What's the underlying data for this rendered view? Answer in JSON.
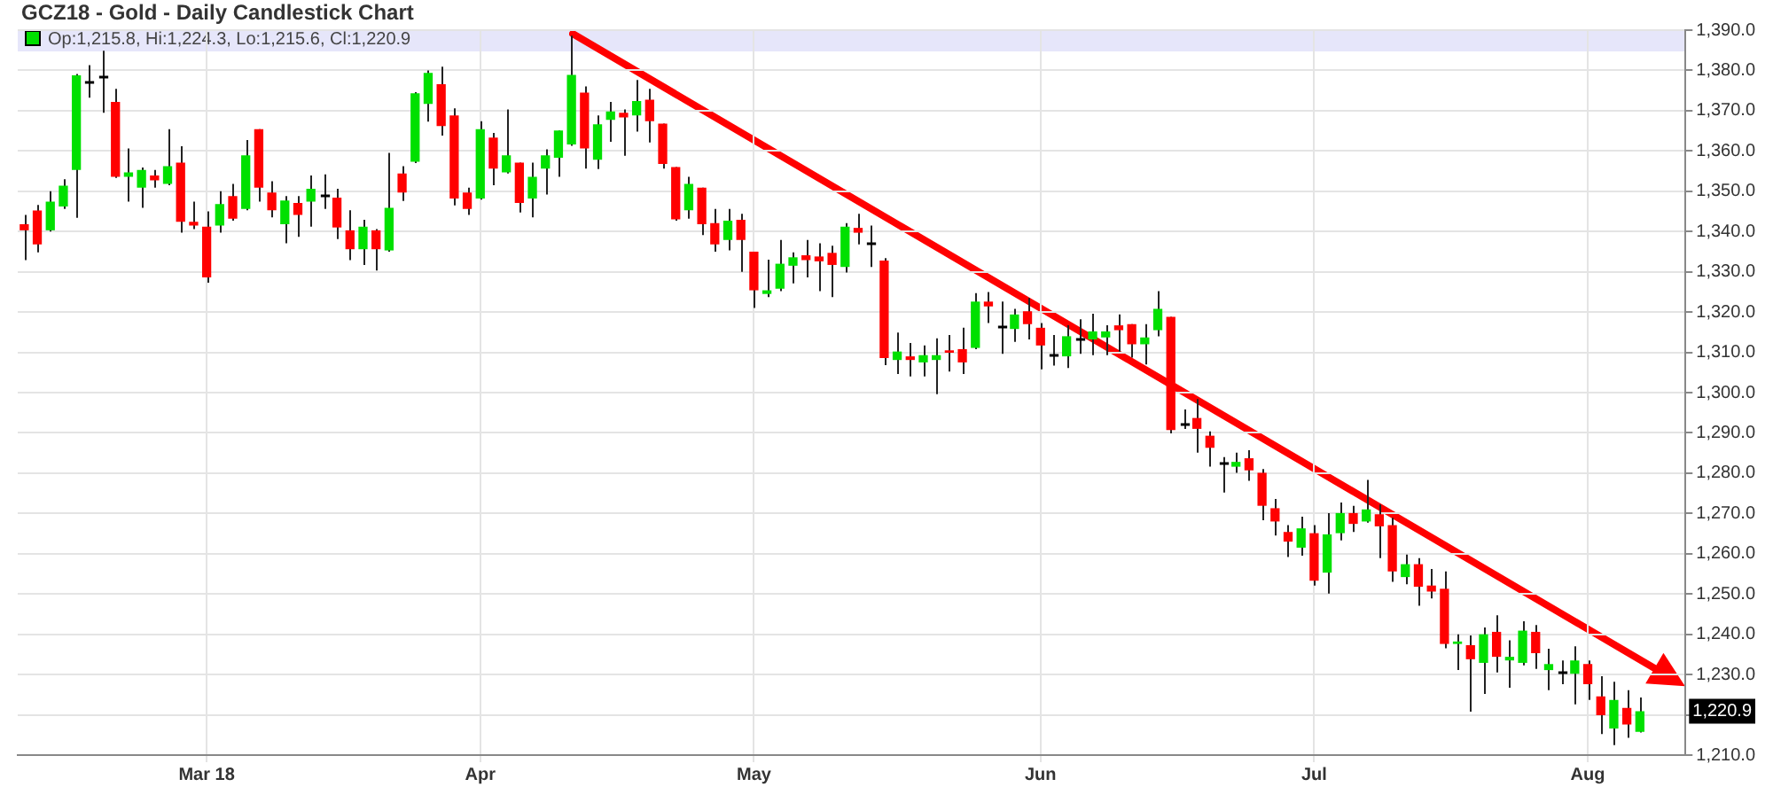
{
  "chart_data": {
    "type": "candlestick",
    "title": "GCZ18 - Gold - Daily Candlestick Chart",
    "categories": [
      null,
      null,
      null,
      null,
      null,
      null,
      null,
      null,
      null,
      null,
      null,
      null,
      null,
      null,
      "Mar 18",
      null,
      null,
      null,
      null,
      null,
      null,
      null,
      null,
      null,
      null,
      null,
      null,
      null,
      null,
      null,
      null,
      null,
      null,
      null,
      null,
      "Apr",
      null,
      null,
      null,
      null,
      null,
      null,
      null,
      null,
      null,
      null,
      null,
      null,
      null,
      null,
      null,
      null,
      null,
      null,
      null,
      null,
      "May",
      null,
      null,
      null,
      null,
      null,
      null,
      null,
      null,
      null,
      null,
      null,
      null,
      null,
      null,
      null,
      null,
      null,
      null,
      null,
      null,
      null,
      "Jun",
      null,
      null,
      null,
      null,
      null,
      null,
      null,
      null,
      null,
      null,
      null,
      null,
      null,
      null,
      null,
      null,
      null,
      null,
      null,
      null,
      "Jul",
      null,
      null,
      null,
      null,
      null,
      null,
      null,
      null,
      null,
      null,
      null,
      null,
      null,
      null,
      null,
      null,
      null,
      null,
      null,
      null,
      "Aug",
      null,
      null,
      null,
      null,
      null,
      null,
      null
    ],
    "ohlc": [
      [
        1341.8,
        1344.1,
        1332.9,
        1340.3
      ],
      [
        1345.2,
        1346.6,
        1334.8,
        1336.8
      ],
      [
        1340.3,
        1350.0,
        1340.0,
        1347.4
      ],
      [
        1346.2,
        1353.0,
        1345.6,
        1351.4
      ],
      [
        1355.3,
        1379.1,
        1343.4,
        1378.8
      ],
      [
        1377.2,
        1381.3,
        1373.2,
        1377.2
      ],
      [
        1378.5,
        1384.9,
        1369.5,
        1378.5
      ],
      [
        1372.2,
        1375.4,
        1353.3,
        1353.6
      ],
      [
        1353.6,
        1360.6,
        1347.4,
        1354.7
      ],
      [
        1350.9,
        1355.9,
        1345.9,
        1355.3
      ],
      [
        1353.9,
        1355.3,
        1350.9,
        1352.7
      ],
      [
        1351.8,
        1365.4,
        1351.5,
        1356.2
      ],
      [
        1357.1,
        1361.2,
        1339.7,
        1342.4
      ],
      [
        1342.4,
        1347.4,
        1340.6,
        1341.5
      ],
      [
        1341.2,
        1345.0,
        1327.3,
        1328.6
      ],
      [
        1341.5,
        1350.0,
        1339.7,
        1346.8
      ],
      [
        1348.8,
        1351.8,
        1342.7,
        1343.2
      ],
      [
        1345.6,
        1362.7,
        1345.3,
        1358.9
      ],
      [
        1365.4,
        1365.4,
        1347.4,
        1350.9
      ],
      [
        1349.7,
        1352.5,
        1343.5,
        1345.3
      ],
      [
        1341.8,
        1348.8,
        1337.1,
        1347.7
      ],
      [
        1347.1,
        1348.8,
        1338.7,
        1344.1
      ],
      [
        1347.4,
        1353.9,
        1341.2,
        1350.6
      ],
      [
        1349.1,
        1354.2,
        1345.6,
        1349.1
      ],
      [
        1348.4,
        1350.6,
        1338.1,
        1341.0
      ],
      [
        1340.3,
        1345.3,
        1332.9,
        1335.6
      ],
      [
        1335.6,
        1342.9,
        1331.7,
        1341.2
      ],
      [
        1340.3,
        1340.6,
        1330.3,
        1335.6
      ],
      [
        1335.3,
        1359.5,
        1335.0,
        1345.9
      ],
      [
        1354.4,
        1356.2,
        1347.6,
        1349.7
      ],
      [
        1357.3,
        1374.6,
        1357.0,
        1374.3
      ],
      [
        1371.7,
        1380.0,
        1367.3,
        1379.4
      ],
      [
        1376.6,
        1380.9,
        1363.8,
        1366.2
      ],
      [
        1368.8,
        1370.6,
        1346.5,
        1348.2
      ],
      [
        1349.7,
        1350.9,
        1344.1,
        1345.6
      ],
      [
        1348.2,
        1367.4,
        1347.9,
        1365.4
      ],
      [
        1363.3,
        1364.5,
        1351.5,
        1355.6
      ],
      [
        1354.7,
        1370.3,
        1354.4,
        1358.9
      ],
      [
        1357.1,
        1357.1,
        1344.7,
        1347.1
      ],
      [
        1348.2,
        1357.1,
        1343.5,
        1353.6
      ],
      [
        1355.6,
        1360.4,
        1349.2,
        1358.9
      ],
      [
        1358.3,
        1365.1,
        1353.6,
        1365.1
      ],
      [
        1361.6,
        1388.6,
        1361.3,
        1378.9
      ],
      [
        1374.5,
        1376.0,
        1355.6,
        1360.6
      ],
      [
        1357.8,
        1368.8,
        1355.5,
        1366.6
      ],
      [
        1367.7,
        1372.2,
        1362.3,
        1369.8
      ],
      [
        1369.5,
        1370.3,
        1358.8,
        1368.3
      ],
      [
        1368.8,
        1377.6,
        1364.8,
        1372.4
      ],
      [
        1372.7,
        1375.4,
        1362.1,
        1367.4
      ],
      [
        1366.8,
        1366.8,
        1355.6,
        1356.8
      ],
      [
        1356.0,
        1356.0,
        1342.7,
        1343.0
      ],
      [
        1345.3,
        1353.6,
        1343.2,
        1351.8
      ],
      [
        1350.9,
        1350.9,
        1339.1,
        1341.8
      ],
      [
        1342.1,
        1345.6,
        1335.0,
        1336.8
      ],
      [
        1337.9,
        1345.6,
        1335.3,
        1342.7
      ],
      [
        1342.9,
        1344.4,
        1330.0,
        1337.9
      ],
      [
        1335.0,
        1335.0,
        1321.0,
        1325.4
      ],
      [
        1324.5,
        1333.0,
        1323.7,
        1325.4
      ],
      [
        1325.8,
        1337.9,
        1325.2,
        1332.0
      ],
      [
        1331.5,
        1334.8,
        1327.1,
        1333.6
      ],
      [
        1334.1,
        1337.9,
        1328.6,
        1332.9
      ],
      [
        1333.8,
        1337.1,
        1325.2,
        1332.6
      ],
      [
        1334.7,
        1336.5,
        1323.7,
        1331.7
      ],
      [
        1331.2,
        1342.1,
        1329.8,
        1341.2
      ],
      [
        1340.9,
        1344.4,
        1336.8,
        1339.7
      ],
      [
        1337.3,
        1341.5,
        1331.2,
        1337.3
      ],
      [
        1332.8,
        1333.4,
        1306.8,
        1308.6
      ],
      [
        1308.1,
        1314.9,
        1304.6,
        1310.2
      ],
      [
        1309.0,
        1312.3,
        1304.0,
        1308.1
      ],
      [
        1307.5,
        1311.7,
        1304.0,
        1309.3
      ],
      [
        1308.1,
        1313.5,
        1299.6,
        1309.3
      ],
      [
        1310.5,
        1314.3,
        1305.2,
        1309.9
      ],
      [
        1310.8,
        1316.1,
        1304.6,
        1307.5
      ],
      [
        1311.1,
        1324.7,
        1310.8,
        1322.6
      ],
      [
        1322.6,
        1325.0,
        1317.3,
        1321.4
      ],
      [
        1316.4,
        1322.6,
        1309.6,
        1316.4
      ],
      [
        1315.8,
        1320.8,
        1312.6,
        1319.4
      ],
      [
        1320.2,
        1323.5,
        1313.2,
        1317.0
      ],
      [
        1316.1,
        1317.3,
        1305.8,
        1311.7
      ],
      [
        1309.3,
        1314.3,
        1306.7,
        1309.3
      ],
      [
        1309.0,
        1316.7,
        1306.1,
        1314.0
      ],
      [
        1313.5,
        1318.2,
        1309.6,
        1313.5
      ],
      [
        1313.2,
        1319.6,
        1309.3,
        1315.2
      ],
      [
        1313.7,
        1316.7,
        1309.3,
        1315.2
      ],
      [
        1316.7,
        1319.4,
        1310.2,
        1315.5
      ],
      [
        1317.0,
        1317.0,
        1308.7,
        1312.0
      ],
      [
        1312.0,
        1317.0,
        1307.0,
        1313.7
      ],
      [
        1315.5,
        1325.2,
        1314.0,
        1320.8
      ],
      [
        1318.8,
        1318.8,
        1289.9,
        1290.7
      ],
      [
        1292.5,
        1295.8,
        1291.0,
        1292.5
      ],
      [
        1293.7,
        1298.4,
        1285.1,
        1291.0
      ],
      [
        1289.3,
        1290.4,
        1281.6,
        1286.3
      ],
      [
        1282.5,
        1284.0,
        1275.2,
        1282.5
      ],
      [
        1281.6,
        1285.1,
        1280.1,
        1282.8
      ],
      [
        1283.7,
        1285.7,
        1278.1,
        1280.7
      ],
      [
        1280.1,
        1281.0,
        1268.3,
        1271.9
      ],
      [
        1271.3,
        1273.6,
        1264.5,
        1268.0
      ],
      [
        1265.4,
        1267.1,
        1259.2,
        1263.0
      ],
      [
        1261.5,
        1269.2,
        1259.5,
        1266.3
      ],
      [
        1265.1,
        1267.1,
        1252.1,
        1253.3
      ],
      [
        1255.3,
        1270.1,
        1250.1,
        1264.8
      ],
      [
        1265.1,
        1272.7,
        1263.3,
        1270.1
      ],
      [
        1270.1,
        1271.9,
        1265.4,
        1267.4
      ],
      [
        1268.0,
        1278.3,
        1267.7,
        1271.0
      ],
      [
        1269.8,
        1272.2,
        1258.9,
        1266.8
      ],
      [
        1267.1,
        1268.9,
        1253.0,
        1255.6
      ],
      [
        1254.2,
        1259.8,
        1252.4,
        1257.4
      ],
      [
        1257.4,
        1258.9,
        1247.1,
        1251.8
      ],
      [
        1252.1,
        1256.2,
        1248.9,
        1250.6
      ],
      [
        1251.3,
        1255.6,
        1236.5,
        1237.6
      ],
      [
        1237.6,
        1240.0,
        1231.1,
        1238.2
      ],
      [
        1237.3,
        1239.7,
        1220.8,
        1233.8
      ],
      [
        1232.9,
        1241.7,
        1225.2,
        1240.0
      ],
      [
        1240.6,
        1244.7,
        1230.5,
        1234.4
      ],
      [
        1233.5,
        1238.5,
        1226.7,
        1234.4
      ],
      [
        1232.9,
        1243.2,
        1232.3,
        1240.9
      ],
      [
        1240.6,
        1242.3,
        1231.4,
        1235.3
      ],
      [
        1231.1,
        1236.4,
        1226.1,
        1232.6
      ],
      [
        1230.8,
        1233.5,
        1227.6,
        1230.8
      ],
      [
        1230.2,
        1237.0,
        1222.6,
        1233.5
      ],
      [
        1232.6,
        1233.5,
        1223.7,
        1227.6
      ],
      [
        1224.6,
        1229.6,
        1215.2,
        1219.9
      ],
      [
        1216.6,
        1228.2,
        1212.5,
        1223.7
      ],
      [
        1221.7,
        1226.1,
        1214.3,
        1217.6
      ],
      [
        1215.8,
        1224.3,
        1215.6,
        1220.9
      ],
      null,
      null,
      null
    ],
    "colors": [
      "#ff0000",
      "#ff0000",
      "#00e000",
      "#00e000",
      "#00e000",
      "#000000",
      "#000000",
      "#ff0000",
      "#00e000",
      "#00e000",
      "#ff0000",
      "#00e000",
      "#ff0000",
      "#ff0000",
      "#ff0000",
      "#00e000",
      "#ff0000",
      "#00e000",
      "#ff0000",
      "#ff0000",
      "#00e000",
      "#ff0000",
      "#00e000",
      "#000000",
      "#ff0000",
      "#ff0000",
      "#00e000",
      "#ff0000",
      "#00e000",
      "#ff0000",
      "#00e000",
      "#00e000",
      "#ff0000",
      "#ff0000",
      "#ff0000",
      "#00e000",
      "#ff0000",
      "#00e000",
      "#ff0000",
      "#00e000",
      "#00e000",
      "#00e000",
      "#00e000",
      "#ff0000",
      "#00e000",
      "#00e000",
      "#ff0000",
      "#00e000",
      "#ff0000",
      "#ff0000",
      "#ff0000",
      "#00e000",
      "#ff0000",
      "#ff0000",
      "#00e000",
      "#ff0000",
      "#ff0000",
      "#00e000",
      "#00e000",
      "#00e000",
      "#ff0000",
      "#ff0000",
      "#ff0000",
      "#00e000",
      "#ff0000",
      "#000000",
      "#ff0000",
      "#00e000",
      "#ff0000",
      "#00e000",
      "#00e000",
      "#ff0000",
      "#ff0000",
      "#00e000",
      "#ff0000",
      "#000000",
      "#00e000",
      "#ff0000",
      "#ff0000",
      "#000000",
      "#00e000",
      "#000000",
      "#00e000",
      "#00e000",
      "#ff0000",
      "#ff0000",
      "#00e000",
      "#00e000",
      "#ff0000",
      "#000000",
      "#ff0000",
      "#ff0000",
      "#000000",
      "#00e000",
      "#ff0000",
      "#ff0000",
      "#ff0000",
      "#ff0000",
      "#00e000",
      "#ff0000",
      "#00e000",
      "#00e000",
      "#ff0000",
      "#00e000",
      "#ff0000",
      "#ff0000",
      "#00e000",
      "#ff0000",
      "#ff0000",
      "#ff0000",
      "#00e000",
      "#ff0000",
      "#00e000",
      "#ff0000",
      "#00e000",
      "#00e000",
      "#ff0000",
      "#00e000",
      "#000000",
      "#00e000",
      "#ff0000",
      "#ff0000",
      "#00e000",
      "#ff0000",
      "#00e000",
      null,
      null,
      null
    ],
    "ylim": [
      1210,
      1390
    ],
    "yticks": [
      {
        "value": 1210,
        "label": "1,210.0"
      },
      {
        "value": 1220,
        "label": null
      },
      {
        "value": 1230,
        "label": "1,230.0"
      },
      {
        "value": 1240,
        "label": "1,240.0"
      },
      {
        "value": 1250,
        "label": "1,250.0"
      },
      {
        "value": 1260,
        "label": "1,260.0"
      },
      {
        "value": 1270,
        "label": "1,270.0"
      },
      {
        "value": 1280,
        "label": "1,280.0"
      },
      {
        "value": 1290,
        "label": "1,290.0"
      },
      {
        "value": 1300,
        "label": "1,300.0"
      },
      {
        "value": 1310,
        "label": "1,310.0"
      },
      {
        "value": 1320,
        "label": "1,320.0"
      },
      {
        "value": 1330,
        "label": "1,330.0"
      },
      {
        "value": 1340,
        "label": "1,340.0"
      },
      {
        "value": 1350,
        "label": "1,350.0"
      },
      {
        "value": 1360,
        "label": "1,360.0"
      },
      {
        "value": 1370,
        "label": "1,370.0"
      },
      {
        "value": 1380,
        "label": "1,380.0"
      },
      {
        "value": 1390,
        "label": "1,390.0"
      }
    ],
    "grid": true,
    "annotations": [
      "Op:1,215.8, Hi:1,224.3, Lo:1,215.6, Cl:1,220.9",
      {
        "text": "1,220.9",
        "y": 1220.9
      }
    ]
  }
}
